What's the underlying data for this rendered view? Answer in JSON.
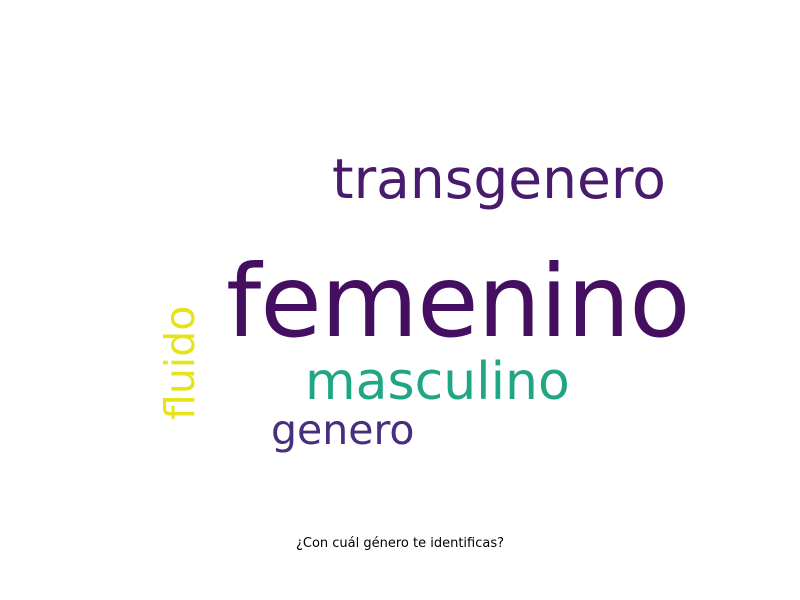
{
  "wordcloud": {
    "words": [
      {
        "text": "femenino",
        "color": "#440f61"
      },
      {
        "text": "transgenero",
        "color": "#481b6d"
      },
      {
        "text": "masculino",
        "color": "#21a685"
      },
      {
        "text": "genero",
        "color": "#472f7d"
      },
      {
        "text": "fluido",
        "color": "#e6e419"
      }
    ]
  },
  "caption": "¿Con cuál género te identificas?"
}
